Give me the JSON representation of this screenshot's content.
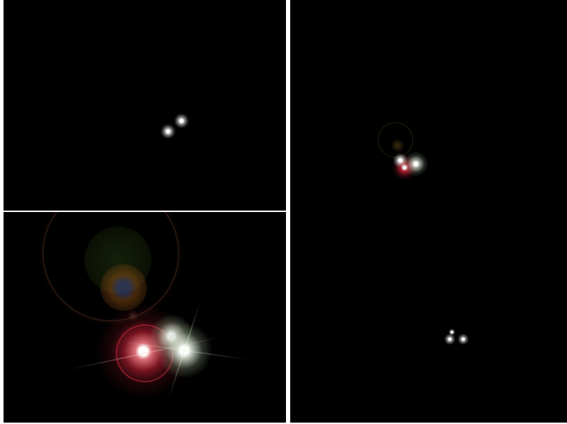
{
  "colors": {
    "background": "#000000",
    "divider": "#ffffff",
    "light_white": "#f4f6f2",
    "light_red": "#d8243a",
    "flare_green": "#3c5a1a",
    "flare_orange": "#a05a18",
    "flare_blue": "#3a4a8c"
  }
}
